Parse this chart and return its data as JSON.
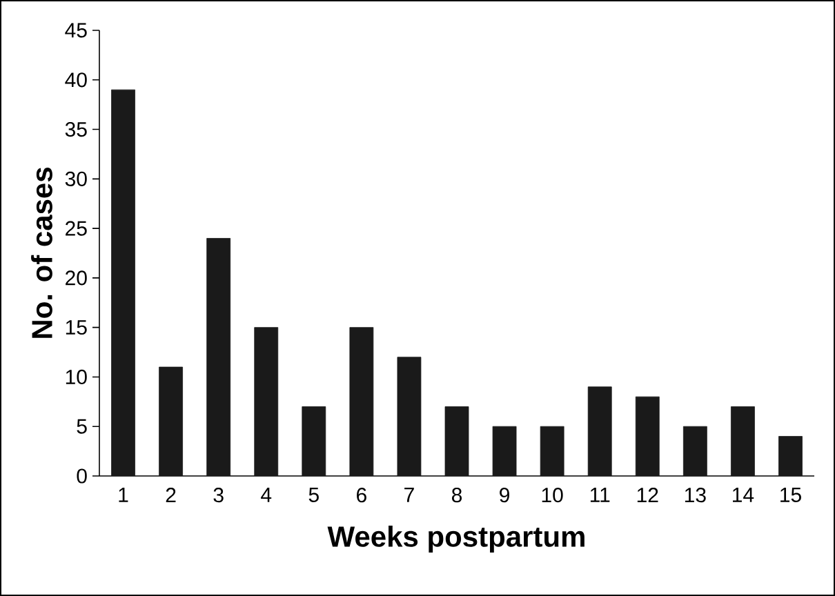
{
  "chart_data": {
    "type": "bar",
    "xlabel": "Weeks postpartum",
    "ylabel": "No. of cases",
    "categories": [
      "1",
      "2",
      "3",
      "4",
      "5",
      "6",
      "7",
      "8",
      "9",
      "10",
      "11",
      "12",
      "13",
      "14",
      "15"
    ],
    "values": [
      39,
      11,
      24,
      15,
      7,
      15,
      12,
      7,
      5,
      5,
      9,
      8,
      5,
      7,
      4
    ],
    "color": "#1a1a1a",
    "ylim": [
      0,
      45
    ],
    "yticks": [
      0,
      5,
      10,
      15,
      20,
      25,
      30,
      35,
      40,
      45
    ]
  }
}
